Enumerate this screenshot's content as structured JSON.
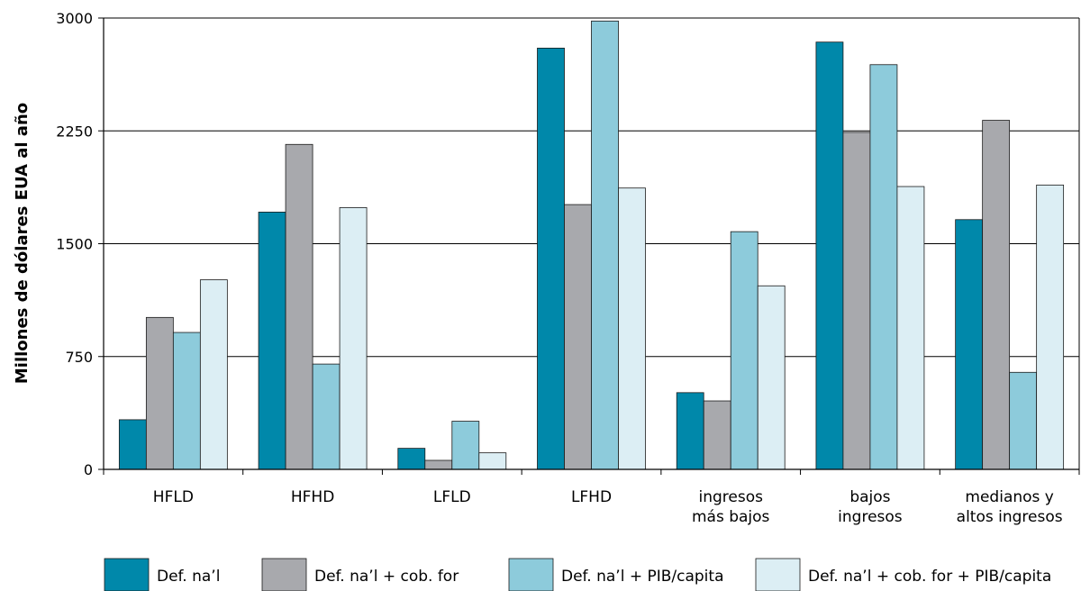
{
  "chart_data": {
    "type": "bar",
    "title": "",
    "xlabel": "",
    "ylabel": "Millones de dólares EUA al año",
    "ylim": [
      0,
      3000
    ],
    "yticks": [
      "0",
      "750",
      "1500",
      "2250",
      "3000"
    ],
    "grid": true,
    "legend_position": "bottom",
    "categories": [
      [
        "HFLD"
      ],
      [
        "HFHD"
      ],
      [
        "LFLD"
      ],
      [
        "LFHD"
      ],
      [
        "ingresos",
        "más bajos"
      ],
      [
        "bajos",
        "ingresos"
      ],
      [
        "medianos y",
        "altos ingresos"
      ]
    ],
    "series": [
      {
        "name": "Def. na’l",
        "color": "#0088aa",
        "values": [
          330,
          1710,
          140,
          2800,
          510,
          2840,
          1660
        ]
      },
      {
        "name": "Def. na’l + cob. for",
        "color": "#a8a9ad",
        "values": [
          1010,
          2160,
          60,
          1760,
          455,
          2240,
          2320
        ]
      },
      {
        "name": "Def. na’l + PIB/capita",
        "color": "#8dcbdb",
        "values": [
          910,
          700,
          320,
          2980,
          1580,
          2690,
          645
        ]
      },
      {
        "name": "Def. na’l + cob. for + PIB/capita",
        "color": "#dceef4",
        "values": [
          1260,
          1740,
          110,
          1870,
          1220,
          1880,
          1890
        ]
      }
    ]
  }
}
